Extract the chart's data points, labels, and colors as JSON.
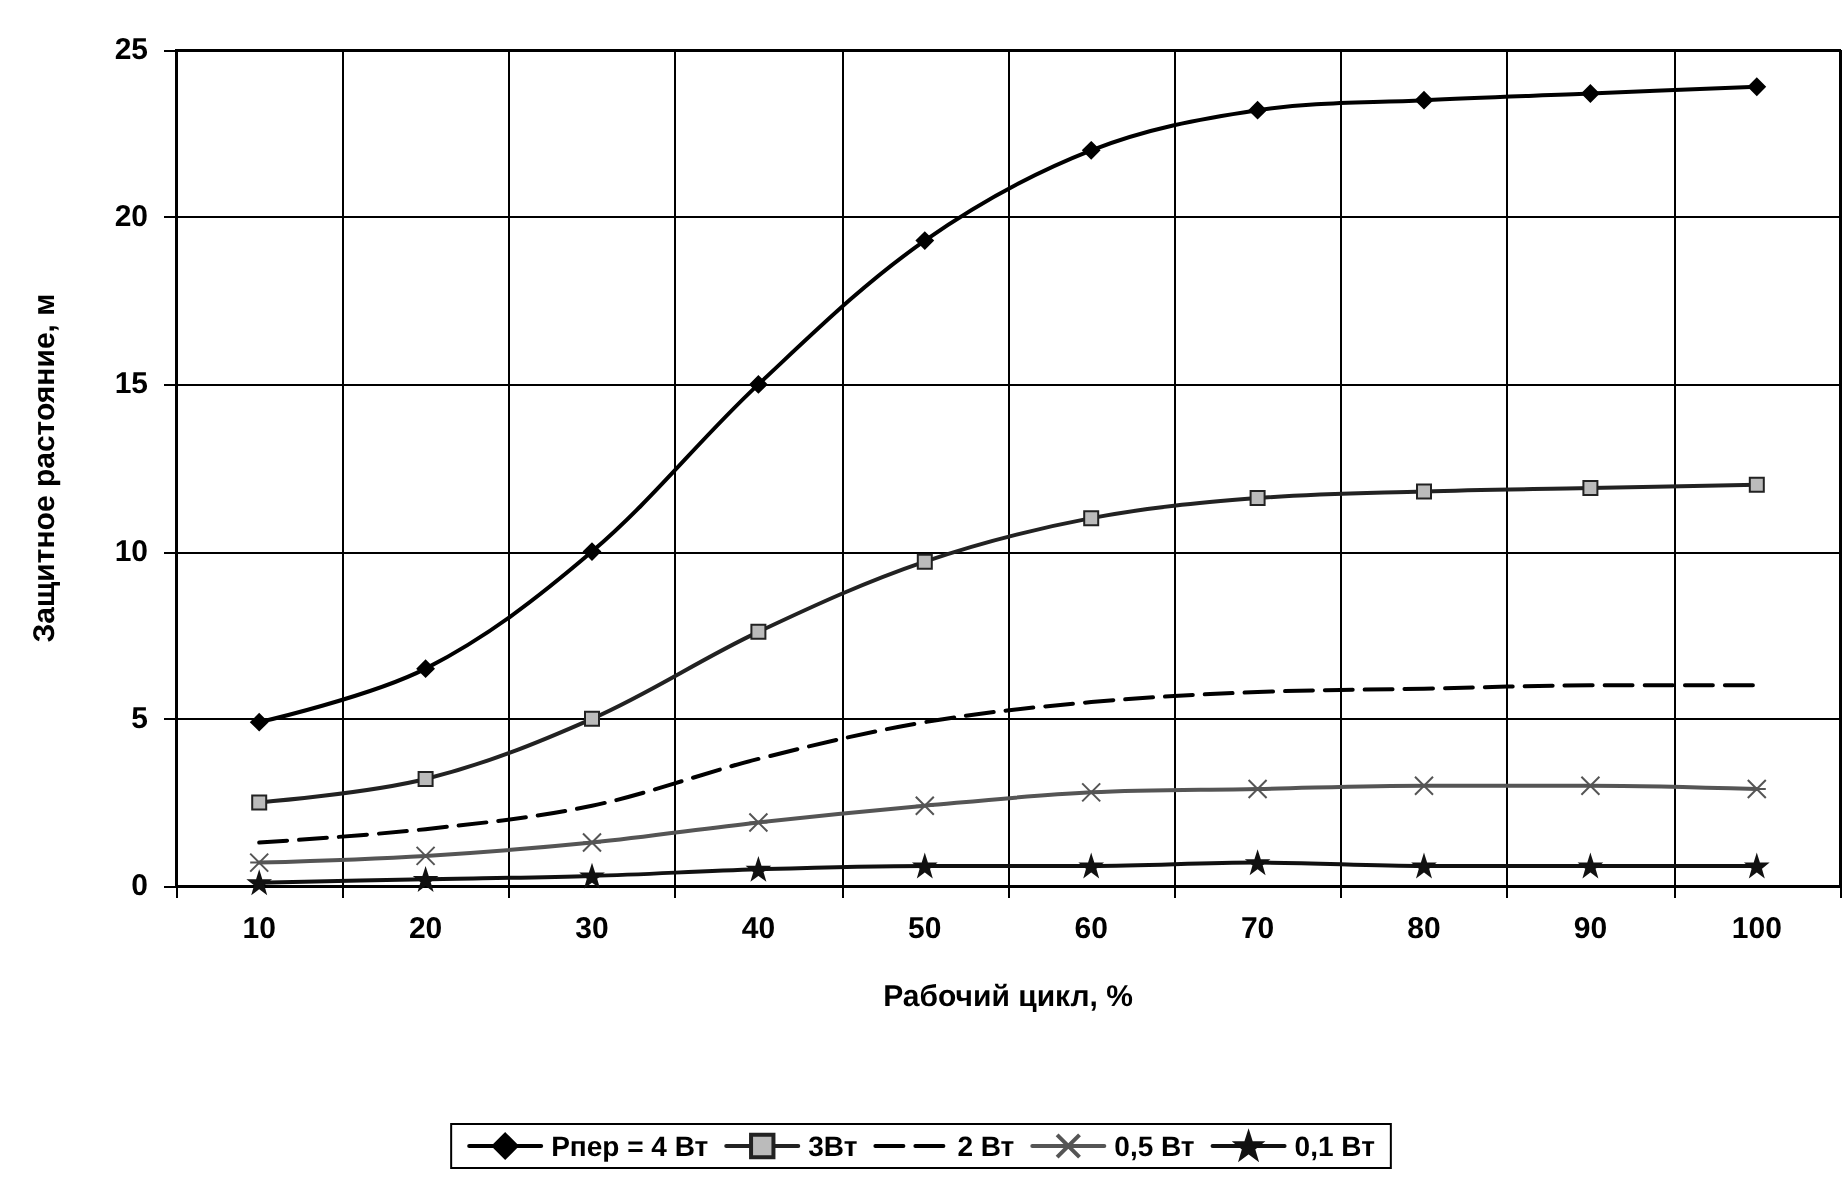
{
  "chart_data": {
    "type": "line",
    "xlabel": "Рабочий цикл, %",
    "ylabel": "Защитное растояние, м",
    "categories": [
      "10",
      "20",
      "30",
      "40",
      "50",
      "60",
      "70",
      "80",
      "90",
      "100"
    ],
    "ylim": [
      0,
      25
    ],
    "yticks": [
      0,
      5,
      10,
      15,
      20,
      25
    ],
    "grid": true,
    "legend": "bottom",
    "series": [
      {
        "name": "Рпер = 4 Вт",
        "color": "#000000",
        "marker": "diamond",
        "line_style": "solid",
        "values": [
          4.9,
          6.5,
          10,
          15,
          19.3,
          22,
          23.2,
          23.5,
          23.7,
          23.9
        ]
      },
      {
        "name": "3Вт",
        "color": "#222222",
        "marker": "square",
        "line_style": "solid",
        "values": [
          2.5,
          3.2,
          5,
          7.6,
          9.7,
          11,
          11.6,
          11.8,
          11.9,
          12.0
        ]
      },
      {
        "name": "2 Вт",
        "color": "#000000",
        "marker": "none",
        "line_style": "dashed",
        "values": [
          1.3,
          1.7,
          2.4,
          3.8,
          4.9,
          5.5,
          5.8,
          5.9,
          6.0,
          6.0
        ]
      },
      {
        "name": "0,5 Вт",
        "color": "#555555",
        "marker": "cross",
        "line_style": "solid",
        "values": [
          0.7,
          0.9,
          1.3,
          1.9,
          2.4,
          2.8,
          2.9,
          3.0,
          3.0,
          2.9
        ]
      },
      {
        "name": "0,1 Вт",
        "color": "#111111",
        "marker": "star",
        "line_style": "solid",
        "values": [
          0.1,
          0.2,
          0.3,
          0.5,
          0.6,
          0.6,
          0.7,
          0.6,
          0.6,
          0.6
        ]
      }
    ]
  }
}
